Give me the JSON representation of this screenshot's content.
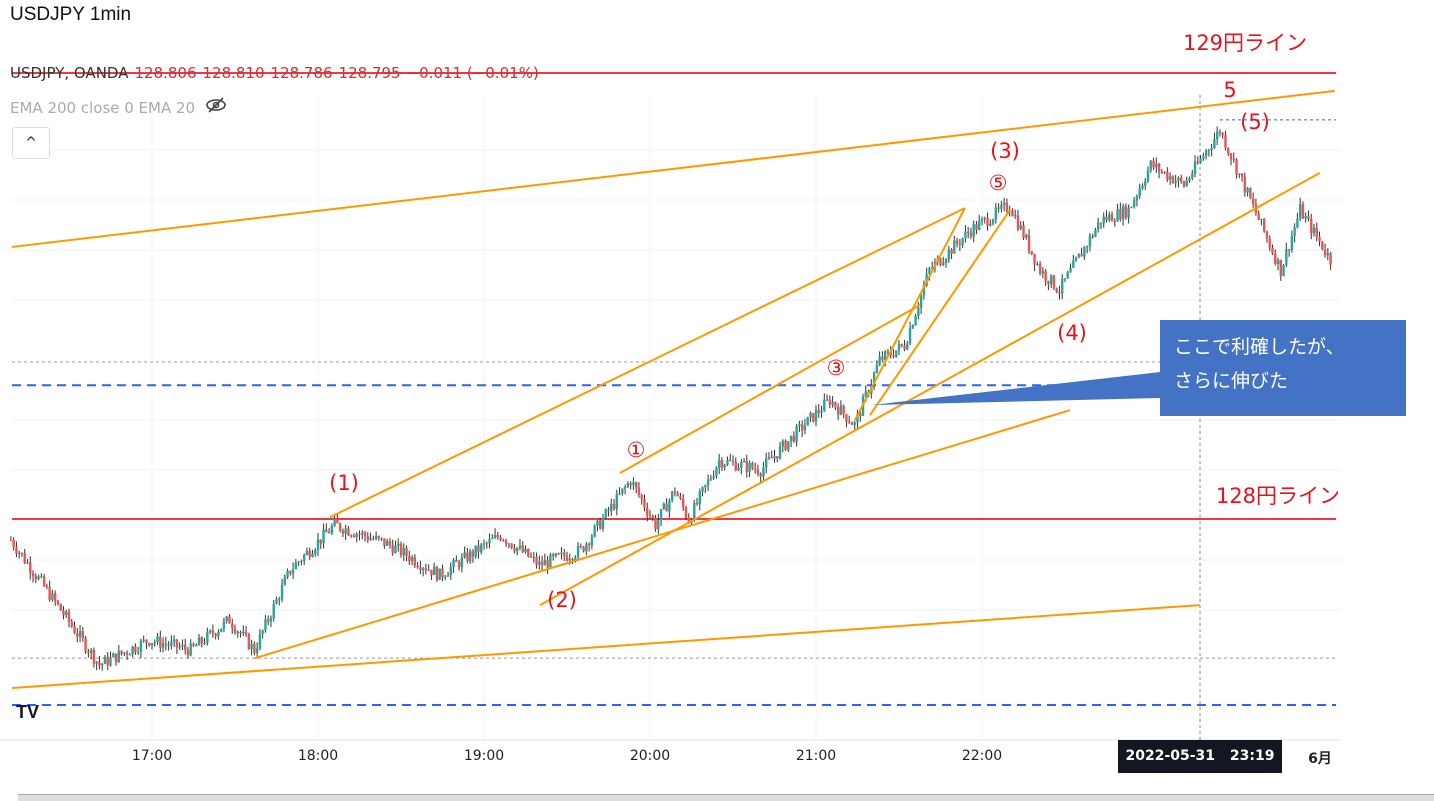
{
  "header": {
    "title": "USDJPY 1min",
    "symbol": "USDJPY, OANDA",
    "open": "128.806",
    "high": "128.810",
    "low": "128.786",
    "close": "128.795",
    "change": "−0.011 (−0.01%)",
    "indicators": "EMA 200 close 0 EMA 20",
    "hide_icon": "eye-slash-icon",
    "collapse_label": "^"
  },
  "callout": {
    "line1": "ここで利確したが、",
    "line2": "さらに伸びた"
  },
  "annotations": {
    "l129": "129円ライン",
    "l128": "128円ライン",
    "w5": "5",
    "w5p": "(5)",
    "w3p": "(3)",
    "c5": "⑤",
    "c3": "③",
    "c1": "①",
    "w1p": "(1)",
    "w2p": "(2)",
    "w4p": "(4)"
  },
  "xaxis": {
    "ticks": [
      "17:00",
      "18:00",
      "19:00",
      "20:00",
      "21:00",
      "22:00"
    ],
    "crosshair_date": "2022-05-31",
    "crosshair_time": "23:19",
    "next_label": "6月"
  },
  "colors": {
    "up": "#26a69a",
    "down": "#ef5350",
    "level": "#f23645",
    "trend": "#ff9800",
    "dash": "#2962ff",
    "callout": "#4472c4"
  },
  "chart_data": {
    "type": "candlestick",
    "title": "USDJPY 1min",
    "time_unit": "minutes after 16:00 (2022-05-31)",
    "xticks": [
      60,
      120,
      180,
      240,
      300,
      360
    ],
    "close_path": [
      [
        9,
        127.953
      ],
      [
        27,
        127.796
      ],
      [
        41,
        127.673
      ],
      [
        59,
        127.729
      ],
      [
        74,
        127.706
      ],
      [
        88,
        127.774
      ],
      [
        97,
        127.706
      ],
      [
        110,
        127.886
      ],
      [
        126,
        127.987
      ],
      [
        146,
        127.942
      ],
      [
        164,
        127.874
      ],
      [
        186,
        127.964
      ],
      [
        200,
        127.897
      ],
      [
        215,
        127.93
      ],
      [
        233,
        128.087
      ],
      [
        242,
        127.987
      ],
      [
        249,
        128.065
      ],
      [
        254,
        127.998
      ],
      [
        265,
        128.132
      ],
      [
        280,
        128.11
      ],
      [
        294,
        128.2
      ],
      [
        305,
        128.267
      ],
      [
        314,
        128.211
      ],
      [
        323,
        128.356
      ],
      [
        332,
        128.39
      ],
      [
        341,
        128.558
      ],
      [
        356,
        128.648
      ],
      [
        370,
        128.704
      ],
      [
        381,
        128.558
      ],
      [
        388,
        128.513
      ],
      [
        403,
        128.67
      ],
      [
        413,
        128.693
      ],
      [
        421,
        128.794
      ],
      [
        433,
        128.749
      ],
      [
        446,
        128.872
      ],
      [
        457,
        128.715
      ],
      [
        468,
        128.558
      ],
      [
        475,
        128.693
      ],
      [
        486,
        128.581
      ]
    ],
    "horizontal_levels": [
      {
        "price": 129.0,
        "style": "solid-red"
      },
      {
        "price": 128.0,
        "style": "solid-red"
      },
      {
        "price": 128.3,
        "style": "dashed-blue"
      },
      {
        "price": 127.583,
        "style": "dashed-blue"
      },
      {
        "price": 128.352,
        "style": "dotted-gray"
      },
      {
        "price": 127.688,
        "style": "dotted-gray"
      }
    ],
    "trendlines": [
      [
        9.4,
        128.61,
        487.5,
        128.96
      ],
      [
        124.3,
        128.004,
        353.8,
        128.697
      ],
      [
        229.1,
        128.103,
        337.6,
        128.48
      ],
      [
        314.1,
        128.222,
        353.8,
        128.697
      ],
      [
        319.5,
        128.233,
        370.1,
        128.693
      ],
      [
        97.2,
        127.688,
        391.8,
        128.244
      ],
      [
        200.2,
        127.807,
        482.1,
        128.776
      ],
      [
        9.4,
        127.621,
        438.7,
        127.807
      ]
    ],
    "crosshair_t": 438.8
  }
}
